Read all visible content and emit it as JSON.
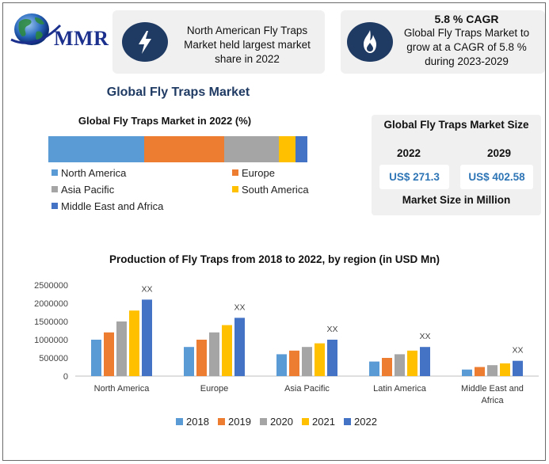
{
  "brand": {
    "logo_text": "MMR"
  },
  "info": {
    "box1_text": "North American Fly Traps Market held largest market share in 2022",
    "box2_title": "5.8 % CAGR",
    "box2_text": "Global Fly Traps Market to grow at a CAGR of 5.8 % during 2023-2029"
  },
  "main_title": "Global Fly Traps Market",
  "colors": {
    "blue": "#5b9bd5",
    "orange": "#ed7d31",
    "gray": "#a5a5a5",
    "yellow": "#ffc000",
    "darkblue": "#4472c4",
    "navy": "#1f3a63"
  },
  "market_size": {
    "title": "Global Fly Traps Market Size",
    "year_start": "2022",
    "year_end": "2029",
    "value_start": "US$ 271.3",
    "value_end": "US$ 402.58",
    "unit": "Market Size in Million"
  },
  "chart_data": [
    {
      "type": "bar",
      "orientation": "horizontal-stacked",
      "title": "Global Fly Traps Market in 2022 (%)",
      "categories": [
        "North America",
        "Europe",
        "Asia Pacific",
        "South America",
        "Middle East and Africa"
      ],
      "values": [
        37,
        31,
        21,
        6.5,
        4.5
      ],
      "colors": [
        "#5b9bd5",
        "#ed7d31",
        "#a5a5a5",
        "#ffc000",
        "#4472c4"
      ],
      "legend_position": "bottom"
    },
    {
      "type": "bar",
      "title": "Production of Fly Traps from 2018 to 2022, by region (in USD Mn)",
      "categories": [
        "North America",
        "Europe",
        "Asia Pacific",
        "Latin America",
        "Middle East and Africa"
      ],
      "series": [
        {
          "name": "2018",
          "color": "#5b9bd5",
          "values": [
            1000000,
            800000,
            600000,
            400000,
            180000
          ]
        },
        {
          "name": "2019",
          "color": "#ed7d31",
          "values": [
            1200000,
            1000000,
            700000,
            500000,
            250000
          ]
        },
        {
          "name": "2020",
          "color": "#a5a5a5",
          "values": [
            1500000,
            1200000,
            800000,
            600000,
            300000
          ]
        },
        {
          "name": "2021",
          "color": "#ffc000",
          "values": [
            1800000,
            1400000,
            900000,
            700000,
            350000
          ]
        },
        {
          "name": "2022",
          "color": "#4472c4",
          "values": [
            2100000,
            1600000,
            1000000,
            800000,
            420000
          ]
        }
      ],
      "data_labels": [
        "XX",
        "XX",
        "XX",
        "XX",
        "XX"
      ],
      "yticks": [
        "0",
        "500000",
        "1000000",
        "1500000",
        "2000000",
        "2500000"
      ],
      "ylim": [
        0,
        2500000
      ],
      "xlabel": "",
      "ylabel": "",
      "legend_position": "bottom"
    }
  ]
}
